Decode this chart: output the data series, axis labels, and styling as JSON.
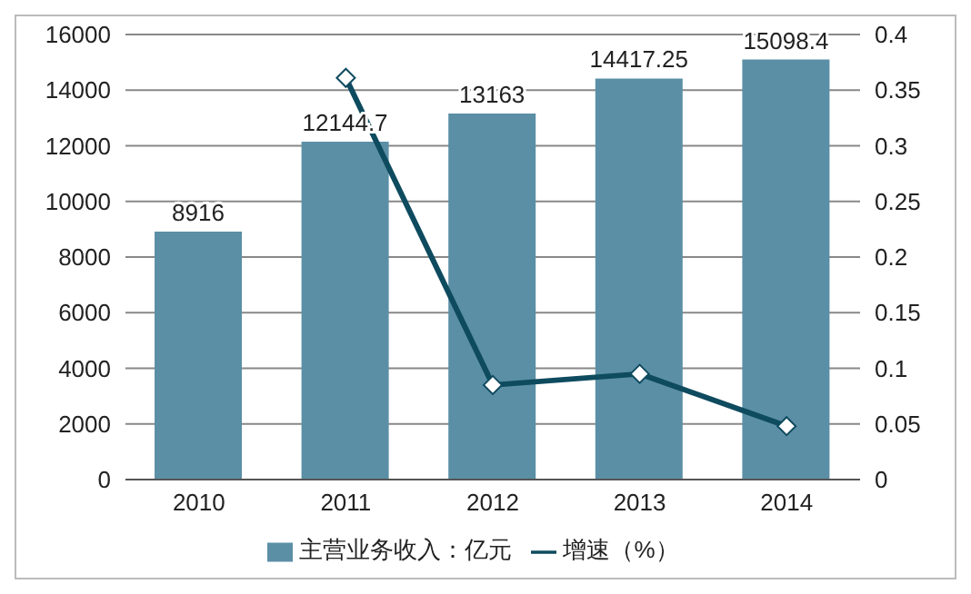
{
  "chart_data": {
    "type": "bar",
    "categories": [
      "2010",
      "2011",
      "2012",
      "2013",
      "2014"
    ],
    "series": [
      {
        "name": "主营业务收入：亿元",
        "color": "#5b8fa6",
        "values": [
          8916,
          12144.7,
          13163,
          14417.25,
          15098.4
        ],
        "value_labels": [
          "8916",
          "12144.7",
          "13163",
          "14417.25",
          "15098.4"
        ]
      },
      {
        "name": "增速（%）",
        "type": "line",
        "axis": "y2",
        "color": "#0f4b5f",
        "marker": "diamond",
        "values": [
          null,
          0.361,
          0.085,
          0.095,
          0.048
        ]
      }
    ],
    "ylim": [
      0,
      16000
    ],
    "yticks": [
      0,
      2000,
      4000,
      6000,
      8000,
      10000,
      12000,
      14000,
      16000
    ],
    "y2lim": [
      0,
      0.4
    ],
    "y2ticks": [
      0,
      0.05,
      0.1,
      0.15,
      0.2,
      0.25,
      0.3,
      0.35,
      0.4
    ],
    "grid": "y",
    "legend": "bottom"
  }
}
